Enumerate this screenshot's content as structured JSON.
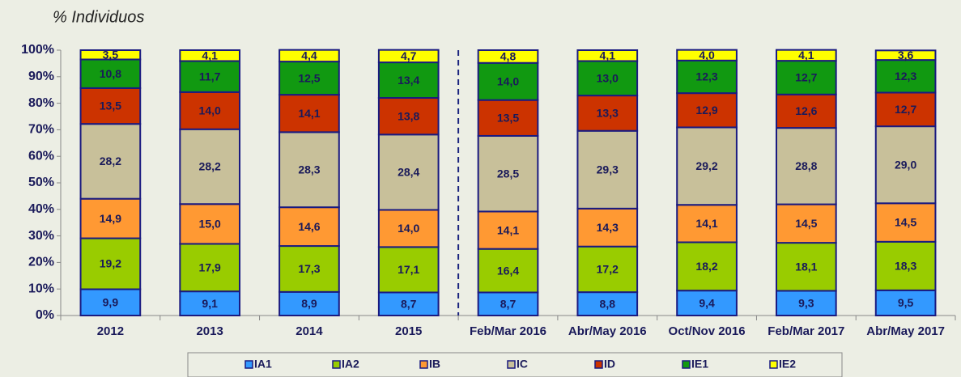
{
  "chart_data": {
    "type": "stacked_bar",
    "y_label": "% Individuos",
    "categories": [
      "2012",
      "2013",
      "2014",
      "2015",
      "Feb/Mar 2016",
      "Abr/May 2016",
      "Oct/Nov 2016",
      "Feb/Mar 2017",
      "Abr/May 2017"
    ],
    "series": [
      {
        "name": "IA1",
        "color": "#3399ff",
        "values": [
          9.9,
          9.1,
          8.9,
          8.7,
          8.7,
          8.8,
          9.4,
          9.3,
          9.5
        ],
        "value_labels": [
          "9,9",
          "9,1",
          "8,9",
          "8,7",
          "8,7",
          "8,8",
          "9,4",
          "9,3",
          "9,5"
        ]
      },
      {
        "name": "IA2",
        "color": "#99cc00",
        "values": [
          19.2,
          17.9,
          17.3,
          17.1,
          16.4,
          17.2,
          18.2,
          18.1,
          18.3
        ],
        "value_labels": [
          "19,2",
          "17,9",
          "17,3",
          "17,1",
          "16,4",
          "17,2",
          "18,2",
          "18,1",
          "18,3"
        ]
      },
      {
        "name": "IB",
        "color": "#ff9933",
        "values": [
          14.9,
          15.0,
          14.6,
          14.0,
          14.1,
          14.3,
          14.1,
          14.5,
          14.5
        ],
        "value_labels": [
          "14,9",
          "15,0",
          "14,6",
          "14,0",
          "14,1",
          "14,3",
          "14,1",
          "14,5",
          "14,5"
        ]
      },
      {
        "name": "IC",
        "color": "#c8c09a",
        "values": [
          28.2,
          28.2,
          28.3,
          28.4,
          28.5,
          29.3,
          29.2,
          28.8,
          29.0
        ],
        "value_labels": [
          "28,2",
          "28,2",
          "28,3",
          "28,4",
          "28,5",
          "29,3",
          "29,2",
          "28,8",
          "29,0"
        ]
      },
      {
        "name": "ID",
        "color": "#cc3300",
        "values": [
          13.5,
          14.0,
          14.1,
          13.8,
          13.5,
          13.3,
          12.9,
          12.6,
          12.7
        ],
        "value_labels": [
          "13,5",
          "14,0",
          "14,1",
          "13,8",
          "13,5",
          "13,3",
          "12,9",
          "12,6",
          "12,7"
        ]
      },
      {
        "name": "IE1",
        "color": "#119911",
        "values": [
          10.8,
          11.7,
          12.5,
          13.4,
          14.0,
          13.0,
          12.3,
          12.7,
          12.3
        ],
        "value_labels": [
          "10,8",
          "11,7",
          "12,5",
          "13,4",
          "14,0",
          "13,0",
          "12,3",
          "12,7",
          "12,3"
        ]
      },
      {
        "name": "IE2",
        "color": "#ffff00",
        "values": [
          3.5,
          4.1,
          4.4,
          4.7,
          4.8,
          4.1,
          4.0,
          4.1,
          3.6
        ],
        "value_labels": [
          "3,5",
          "4,1",
          "4,4",
          "4,7",
          "4,8",
          "4,1",
          "4,0",
          "4,1",
          "3,6"
        ]
      }
    ],
    "ylim": [
      0,
      100
    ],
    "yticks": [
      {
        "value": 0,
        "label": "0%"
      },
      {
        "value": 10,
        "label": "10%"
      },
      {
        "value": 20,
        "label": "20%"
      },
      {
        "value": 30,
        "label": "30%"
      },
      {
        "value": 40,
        "label": "40%"
      },
      {
        "value": 50,
        "label": "50%"
      },
      {
        "value": 60,
        "label": "60%"
      },
      {
        "value": 70,
        "label": "70%"
      },
      {
        "value": 80,
        "label": "80%"
      },
      {
        "value": 90,
        "label": "90%"
      },
      {
        "value": 100,
        "label": "100%"
      }
    ],
    "legend": "bottom"
  }
}
